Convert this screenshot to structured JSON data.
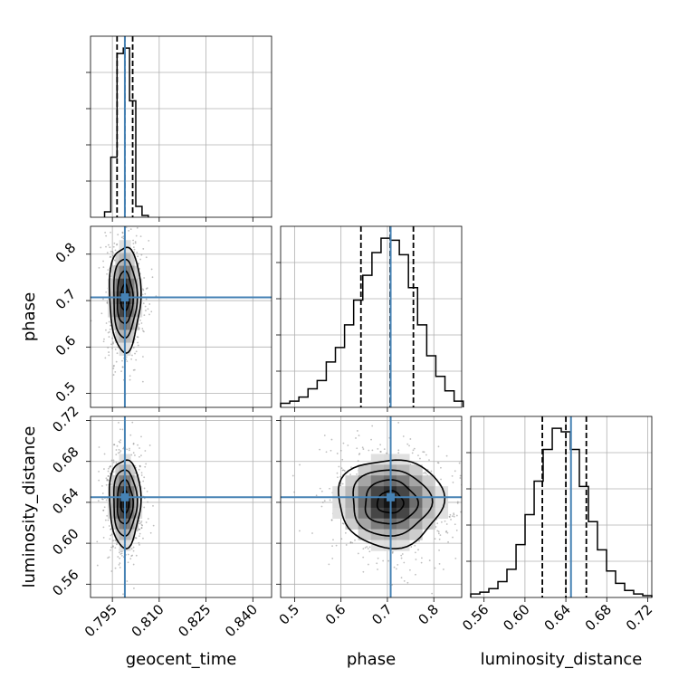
{
  "chart_data": {
    "type": "corner",
    "parameters": [
      "geocent_time",
      "phase",
      "luminosity_distance"
    ],
    "labels": {
      "geocent_time": "geocent_time",
      "phase": "phase",
      "luminosity_distance": "luminosity_distance"
    },
    "ranges": {
      "geocent_time": [
        0.788,
        0.846
      ],
      "phase": [
        0.47,
        0.86
      ],
      "luminosity_distance": [
        0.547,
        0.724
      ]
    },
    "ticks": {
      "geocent_time": [
        0.795,
        0.81,
        0.825,
        0.84
      ],
      "phase": [
        0.5,
        0.6,
        0.7,
        0.8
      ],
      "luminosity_distance": [
        0.56,
        0.6,
        0.64,
        0.68,
        0.72
      ]
    },
    "tick_labels": {
      "geocent_time": [
        "0.795",
        "0.810",
        "0.825",
        "0.840"
      ],
      "phase": [
        "0.5",
        "0.6",
        "0.7",
        "0.8"
      ],
      "luminosity_distance": [
        "0.56",
        "0.60",
        "0.64",
        "0.68",
        "0.72"
      ]
    },
    "truths": {
      "geocent_time": 0.799,
      "phase": 0.707,
      "luminosity_distance": 0.645
    },
    "quantiles": {
      "geocent_time": [
        0.7965,
        0.799,
        0.8015
      ],
      "phase": [
        0.643,
        0.706,
        0.756
      ],
      "luminosity_distance": [
        0.617,
        0.64,
        0.66
      ]
    },
    "histograms": {
      "geocent_time": {
        "edges": [
          0.7925,
          0.7945,
          0.7965,
          0.7985,
          0.8005,
          0.8025,
          0.8045,
          0.8065
        ],
        "counts": [
          3,
          33,
          90,
          93,
          64,
          6,
          1
        ]
      },
      "phase": {
        "edges": [
          0.47,
          0.4897,
          0.5093,
          0.529,
          0.5487,
          0.5683,
          0.588,
          0.6077,
          0.6273,
          0.647,
          0.6667,
          0.6863,
          0.706,
          0.7257,
          0.7453,
          0.765,
          0.7847,
          0.8043,
          0.824,
          0.8437,
          0.8633
        ],
        "counts": [
          2,
          3,
          5,
          9,
          13,
          22,
          29,
          40,
          52,
          64,
          75,
          82,
          81,
          74,
          58,
          40,
          25,
          15,
          8,
          3
        ]
      },
      "luminosity_distance": {
        "edges": [
          0.547,
          0.5559,
          0.5647,
          0.5736,
          0.5824,
          0.5913,
          0.6001,
          0.609,
          0.6178,
          0.6267,
          0.6355,
          0.6444,
          0.6532,
          0.6621,
          0.6709,
          0.6798,
          0.6886,
          0.6975,
          0.7063,
          0.7152,
          0.724
        ],
        "counts": [
          2,
          3,
          5,
          9,
          16,
          30,
          47,
          66,
          84,
          96,
          94,
          84,
          63,
          43,
          27,
          15,
          8,
          4,
          2,
          1
        ]
      }
    },
    "colors": {
      "truth": "#4682b4",
      "hist": "#000000",
      "quantile": "#000000",
      "grid": "#b0b0b0",
      "scatter": "#808080",
      "density_dark": "#000000",
      "density_light": "#ffffff"
    },
    "grid": true
  }
}
